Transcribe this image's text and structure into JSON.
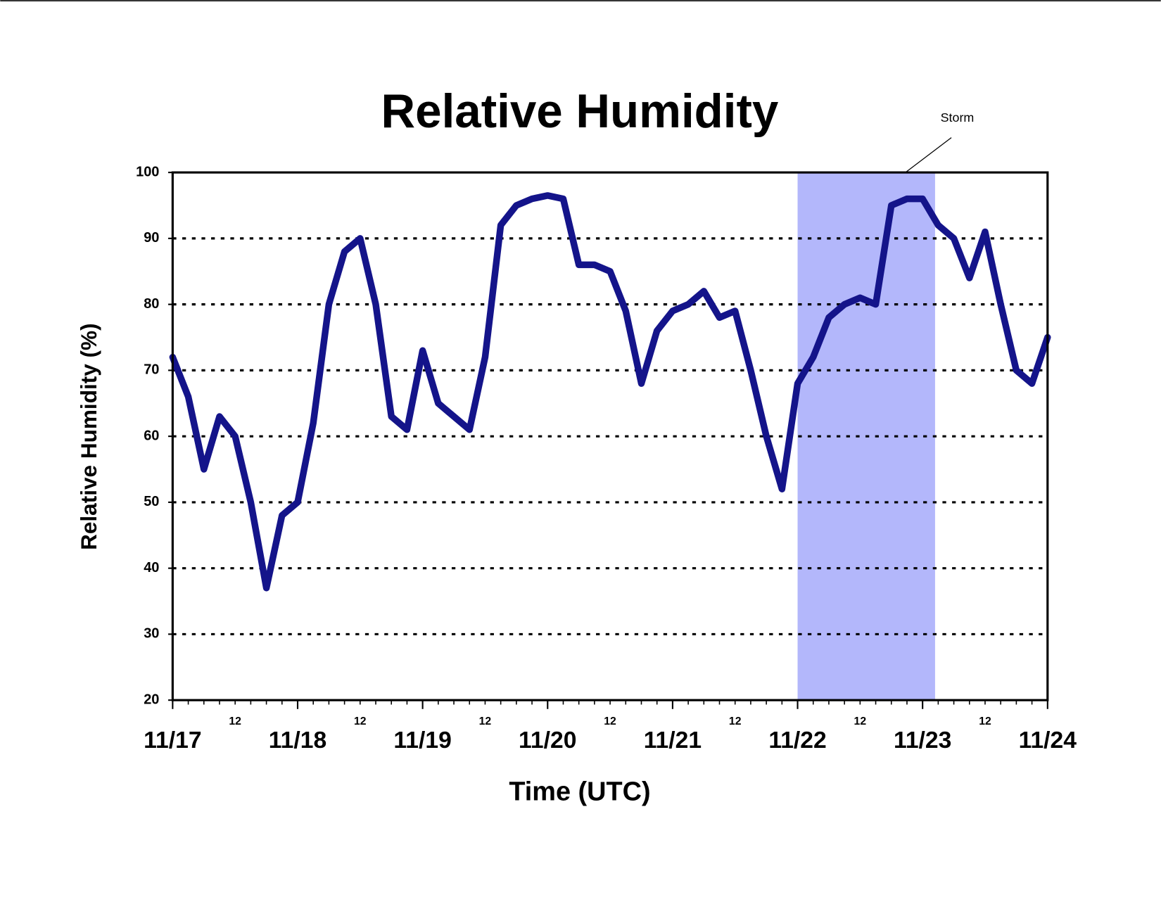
{
  "chart_data": {
    "type": "line",
    "title": "Relative Humidity",
    "x_label": "Time (UTC)",
    "y_label": "Relative Humidity (%)",
    "annotation": "Storm",
    "storm_span": [
      5.0,
      6.1
    ],
    "x": [
      0,
      0.125,
      0.25,
      0.375,
      0.5,
      0.625,
      0.75,
      0.875,
      1,
      1.125,
      1.25,
      1.375,
      1.5,
      1.625,
      1.75,
      1.875,
      2,
      2.125,
      2.25,
      2.375,
      2.5,
      2.625,
      2.75,
      2.875,
      3,
      3.125,
      3.25,
      3.375,
      3.5,
      3.625,
      3.75,
      3.875,
      4,
      4.125,
      4.25,
      4.375,
      4.5,
      4.625,
      4.75,
      4.875,
      5,
      5.125,
      5.25,
      5.375,
      5.5,
      5.625,
      5.75,
      5.875,
      6,
      6.125,
      6.25,
      6.375,
      6.5,
      6.625,
      6.75,
      6.875,
      7
    ],
    "series": [
      {
        "name": "Relative Humidity",
        "color": "#14148a",
        "values": [
          72,
          66,
          55,
          63,
          60,
          50,
          37,
          48,
          50,
          62,
          80,
          88,
          90,
          80,
          63,
          61,
          73,
          65,
          63,
          61,
          72,
          92,
          95,
          96,
          96.5,
          96,
          86,
          86,
          85,
          79,
          68,
          76,
          79,
          80,
          82,
          78,
          79,
          70,
          60,
          52,
          68,
          72,
          78,
          80,
          81,
          80,
          95,
          96,
          96,
          92,
          90,
          84,
          91,
          80,
          70,
          68,
          75
        ]
      }
    ],
    "xlim": [
      0,
      7
    ],
    "xticks": [
      {
        "value": 0,
        "label": "11/17"
      },
      {
        "value": 1,
        "label": "11/18"
      },
      {
        "value": 2,
        "label": "11/19"
      },
      {
        "value": 3,
        "label": "11/20"
      },
      {
        "value": 4,
        "label": "11/21"
      },
      {
        "value": 5,
        "label": "11/22"
      },
      {
        "value": 6,
        "label": "11/23"
      },
      {
        "value": 7,
        "label": "11/24"
      }
    ],
    "x_minor_ticks": [
      {
        "value": 0.5,
        "label": "12"
      },
      {
        "value": 1.5,
        "label": "12"
      },
      {
        "value": 2.5,
        "label": "12"
      },
      {
        "value": 3.5,
        "label": "12"
      },
      {
        "value": 4.5,
        "label": "12"
      },
      {
        "value": 5.5,
        "label": "12"
      },
      {
        "value": 6.5,
        "label": "12"
      }
    ],
    "ylim": [
      20,
      100
    ],
    "yticks": [
      20,
      30,
      40,
      50,
      60,
      70,
      80,
      90,
      100
    ],
    "grid": true
  }
}
